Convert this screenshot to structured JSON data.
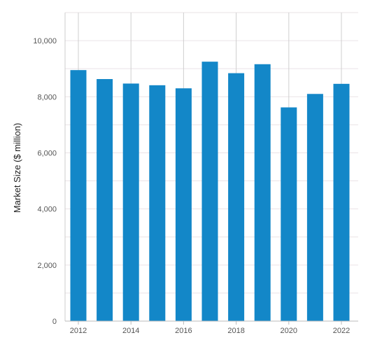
{
  "chart_data": {
    "type": "bar",
    "categories": [
      "2012",
      "2013",
      "2014",
      "2015",
      "2016",
      "2017",
      "2018",
      "2019",
      "2020",
      "2021",
      "2022"
    ],
    "values": [
      8950,
      8630,
      8470,
      8410,
      8300,
      9250,
      8840,
      9160,
      7620,
      8100,
      8460
    ],
    "xlabel": "",
    "ylabel": "Market Size ($ million)",
    "ylim": [
      0,
      11000
    ],
    "y_ticks": [
      0,
      2000,
      4000,
      6000,
      8000,
      10000
    ],
    "y_tick_labels": [
      "0",
      "2,000",
      "4,000",
      "6,000",
      "8,000",
      "10,000"
    ],
    "x_tick_labels": [
      "2012",
      "2014",
      "2016",
      "2018",
      "2020",
      "2022"
    ],
    "grid": true,
    "bar_color": "#1387c8",
    "grid_color": "#eae3e6",
    "vertical_grid_color": "#cfcfcf"
  }
}
